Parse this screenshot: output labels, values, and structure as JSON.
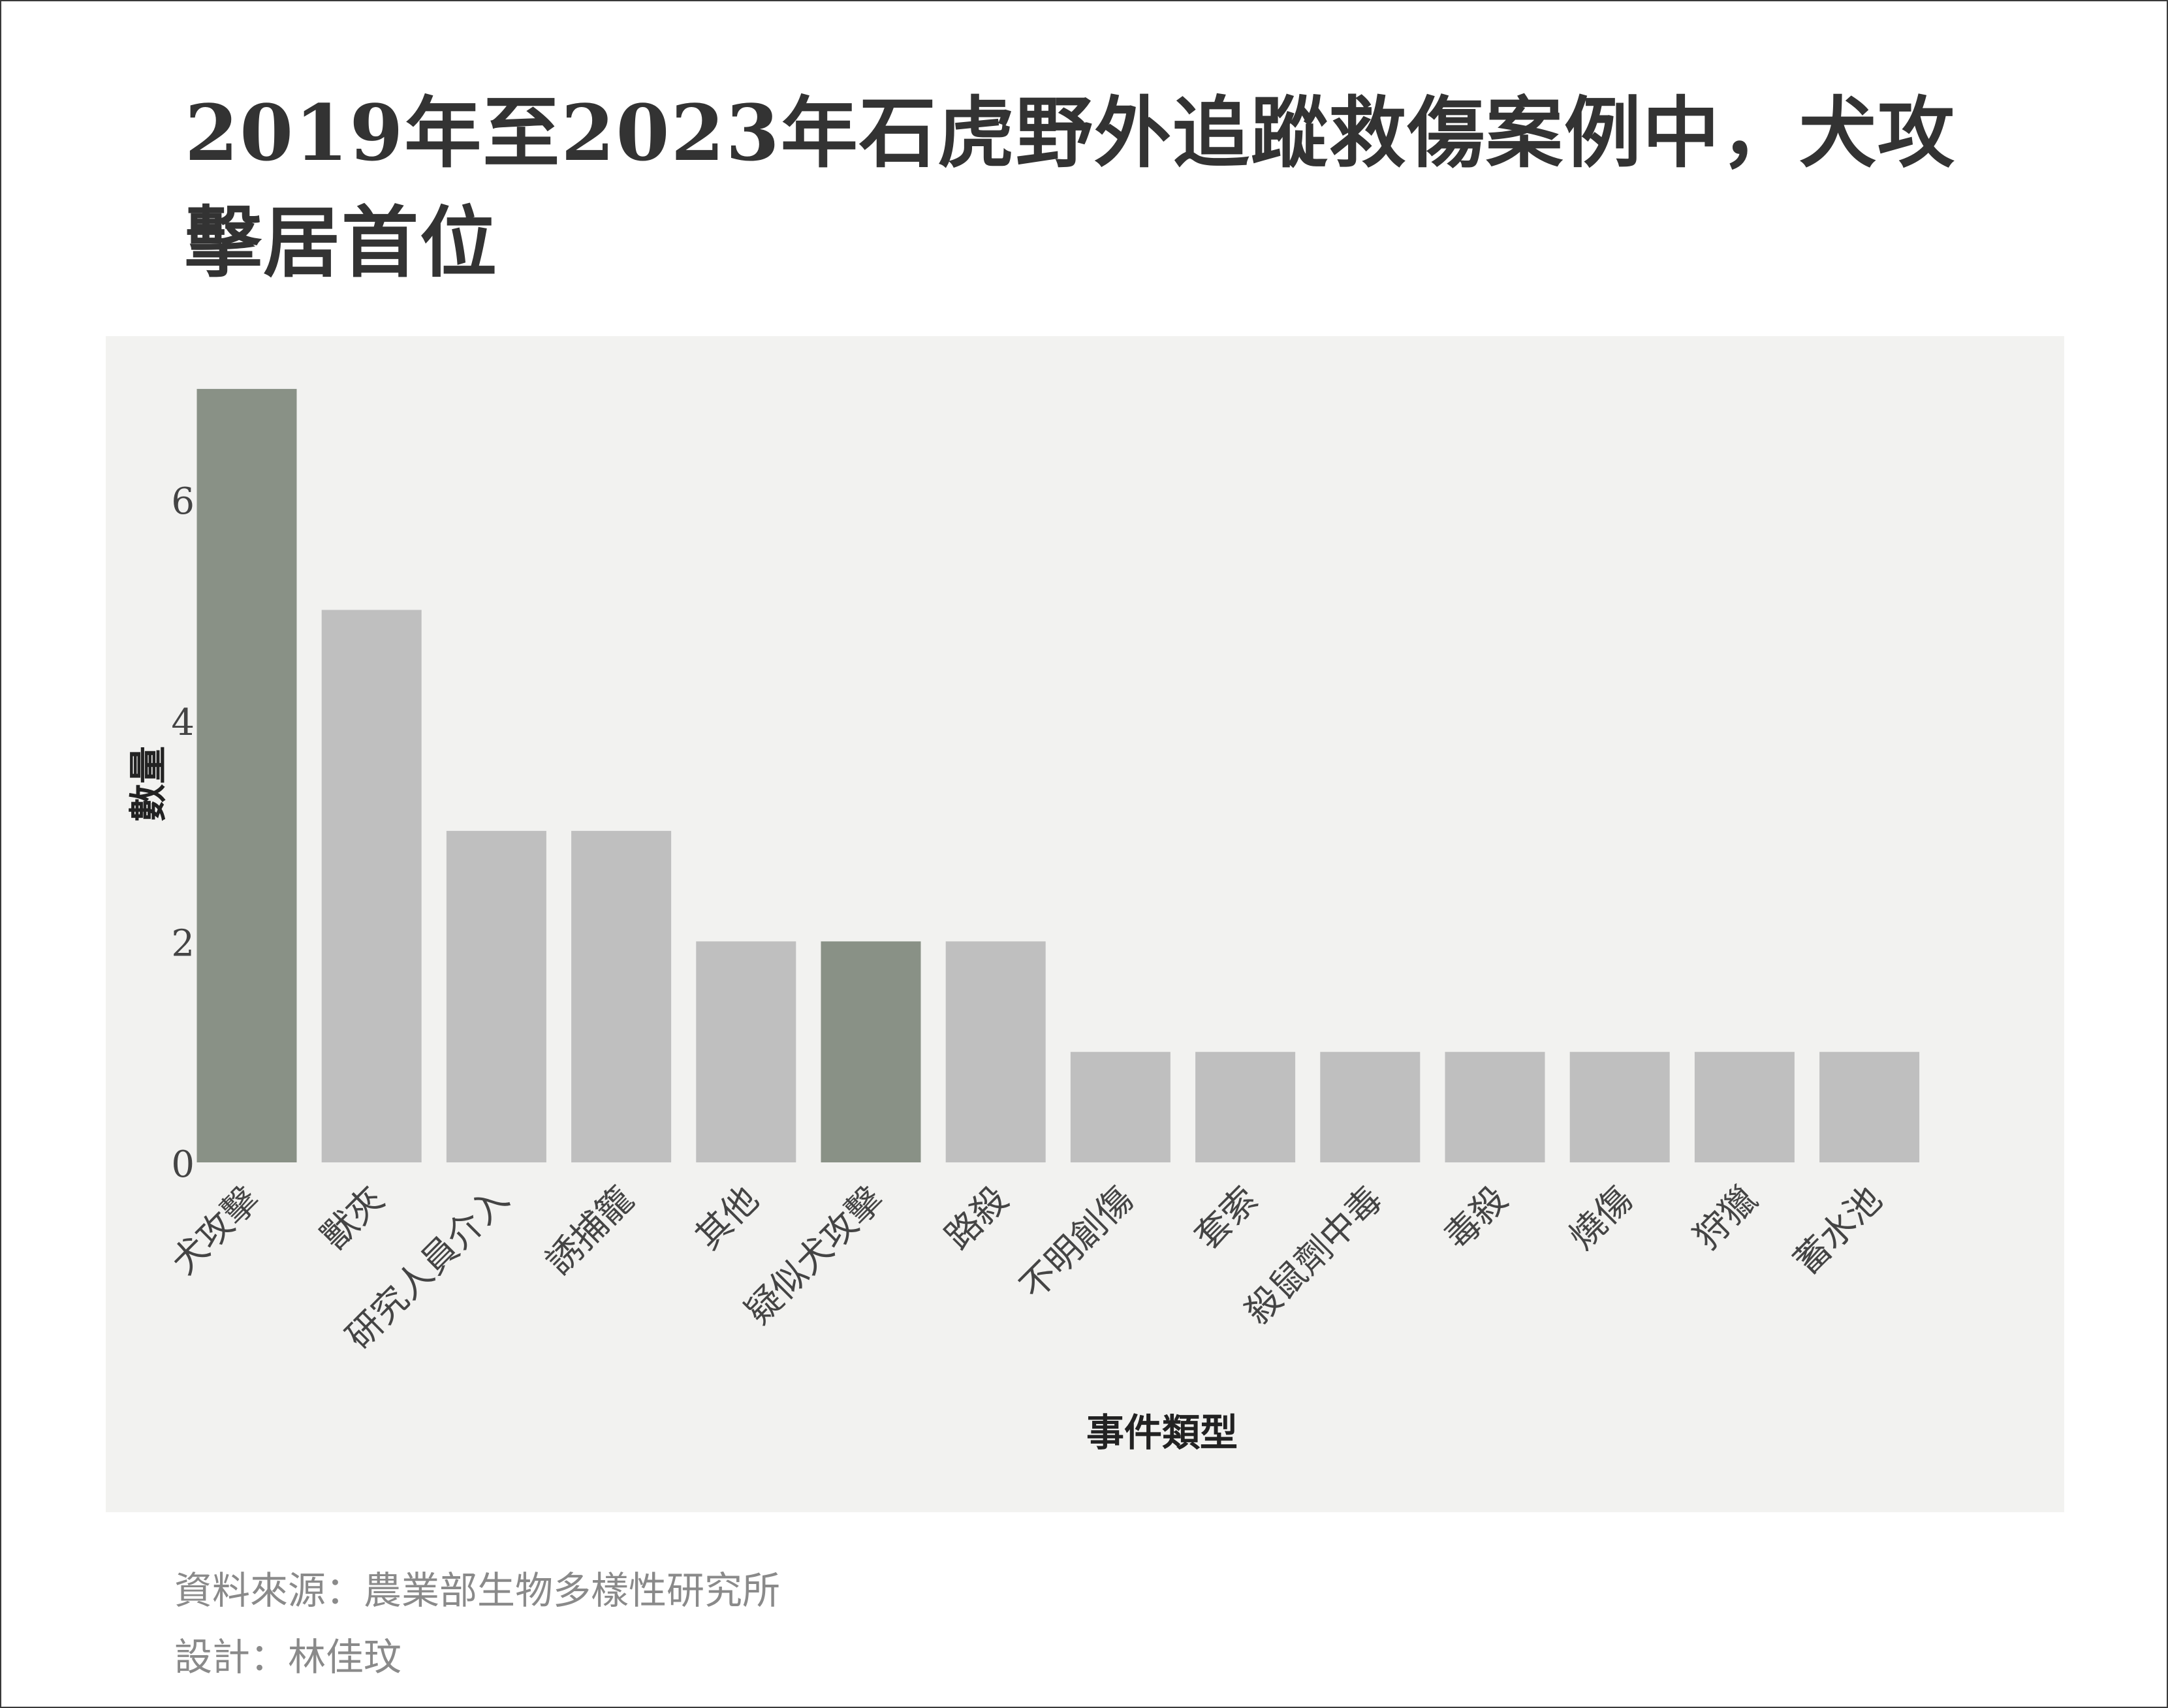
{
  "colors": {
    "highlight": "#899186",
    "normal": "#bfbfbf",
    "panel_background": "#f2f2f0",
    "title_text": "#333333",
    "axis_text": "#444444",
    "footer_text": "#8a8a8a"
  },
  "chart_data": {
    "type": "bar",
    "title": "2019年至2023年石虎野外追蹤救傷案例中，犬攻擊居首位",
    "xlabel": "事件類型",
    "ylabel": "數量",
    "ylim": [
      0,
      7
    ],
    "yticks": [
      0,
      2,
      4,
      6
    ],
    "grid": false,
    "legend": "none",
    "categories": [
      "犬攻擊",
      "獸夾",
      "研究人員介入",
      "誘捕籠",
      "其他",
      "疑似犬攻擊",
      "路殺",
      "不明創傷",
      "套索",
      "殺鼠劑中毒",
      "毒殺",
      "燒傷",
      "狩獵",
      "蓄水池"
    ],
    "values": [
      7,
      5,
      3,
      3,
      2,
      2,
      2,
      1,
      1,
      1,
      1,
      1,
      1,
      1
    ],
    "highlight": [
      true,
      false,
      false,
      false,
      false,
      true,
      false,
      false,
      false,
      false,
      false,
      false,
      false,
      false
    ]
  },
  "footer": {
    "source": "資料來源：農業部生物多樣性研究所",
    "design": "設計：林佳玟"
  }
}
